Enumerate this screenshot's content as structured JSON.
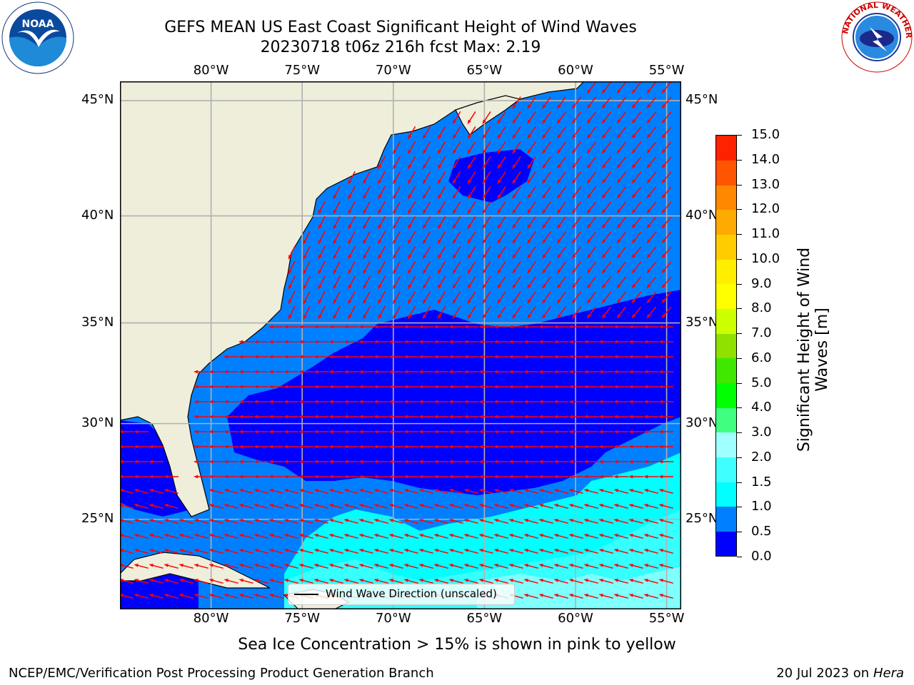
{
  "title": {
    "line1": "GEFS MEAN US East Coast Significant Height of Wind Waves",
    "line2": "20230718 t06z 216h fcst   Max: 2.19"
  },
  "logos": {
    "left": {
      "name": "NOAA",
      "text": "NOAA"
    },
    "right": {
      "name": "National Weather Service",
      "text": "NATIONAL WEATHER SERVICE"
    }
  },
  "map": {
    "lon_labels": [
      "80°W",
      "75°W",
      "70°W",
      "65°W",
      "60°W",
      "55°W"
    ],
    "lat_labels": [
      "45°N",
      "40°N",
      "35°N",
      "30°N",
      "25°N"
    ],
    "lon_range": [
      -85,
      -54.2
    ],
    "lat_range": [
      20.1,
      45.8
    ],
    "gridlines": true,
    "land_color": "#efeedb",
    "arrow_color": "#ff0000",
    "legend": {
      "label": "Wind Wave Direction (unscaled)",
      "placement": "lower-center"
    }
  },
  "colorbar": {
    "title": "Significant Height of Wind Waves [m]",
    "title_lines": [
      "Significant Height of Wind",
      "Waves [m]"
    ],
    "tick_labels": [
      "15.0",
      "14.0",
      "13.0",
      "12.0",
      "11.0",
      "10.0",
      "9.0",
      "8.0",
      "7.0",
      "6.0",
      "5.0",
      "4.0",
      "3.0",
      "2.0",
      "1.5",
      "1.0",
      "0.5",
      "0.0"
    ],
    "levels": [
      0.0,
      0.5,
      1.0,
      1.5,
      2.0,
      3.0,
      4.0,
      5.0,
      6.0,
      7.0,
      8.0,
      9.0,
      10.0,
      11.0,
      12.0,
      13.0,
      14.0,
      15.0
    ],
    "colors": [
      "#0000ff",
      "#0080ff",
      "#00ffff",
      "#40ffff",
      "#a0ffff",
      "#40ff80",
      "#00ff00",
      "#40e800",
      "#90e000",
      "#ccff00",
      "#ffff00",
      "#ffee00",
      "#ffcc00",
      "#ffaa00",
      "#ff8800",
      "#ff5500",
      "#ff2200"
    ]
  },
  "ice_note": "Sea Ice Concentration > 15% is shown in pink to yellow",
  "footer": {
    "left": "NCEP/EMC/Verification Post Processing Product Generation Branch",
    "right_date": "20 Jul 2023 on ",
    "right_host": "Hera"
  }
}
